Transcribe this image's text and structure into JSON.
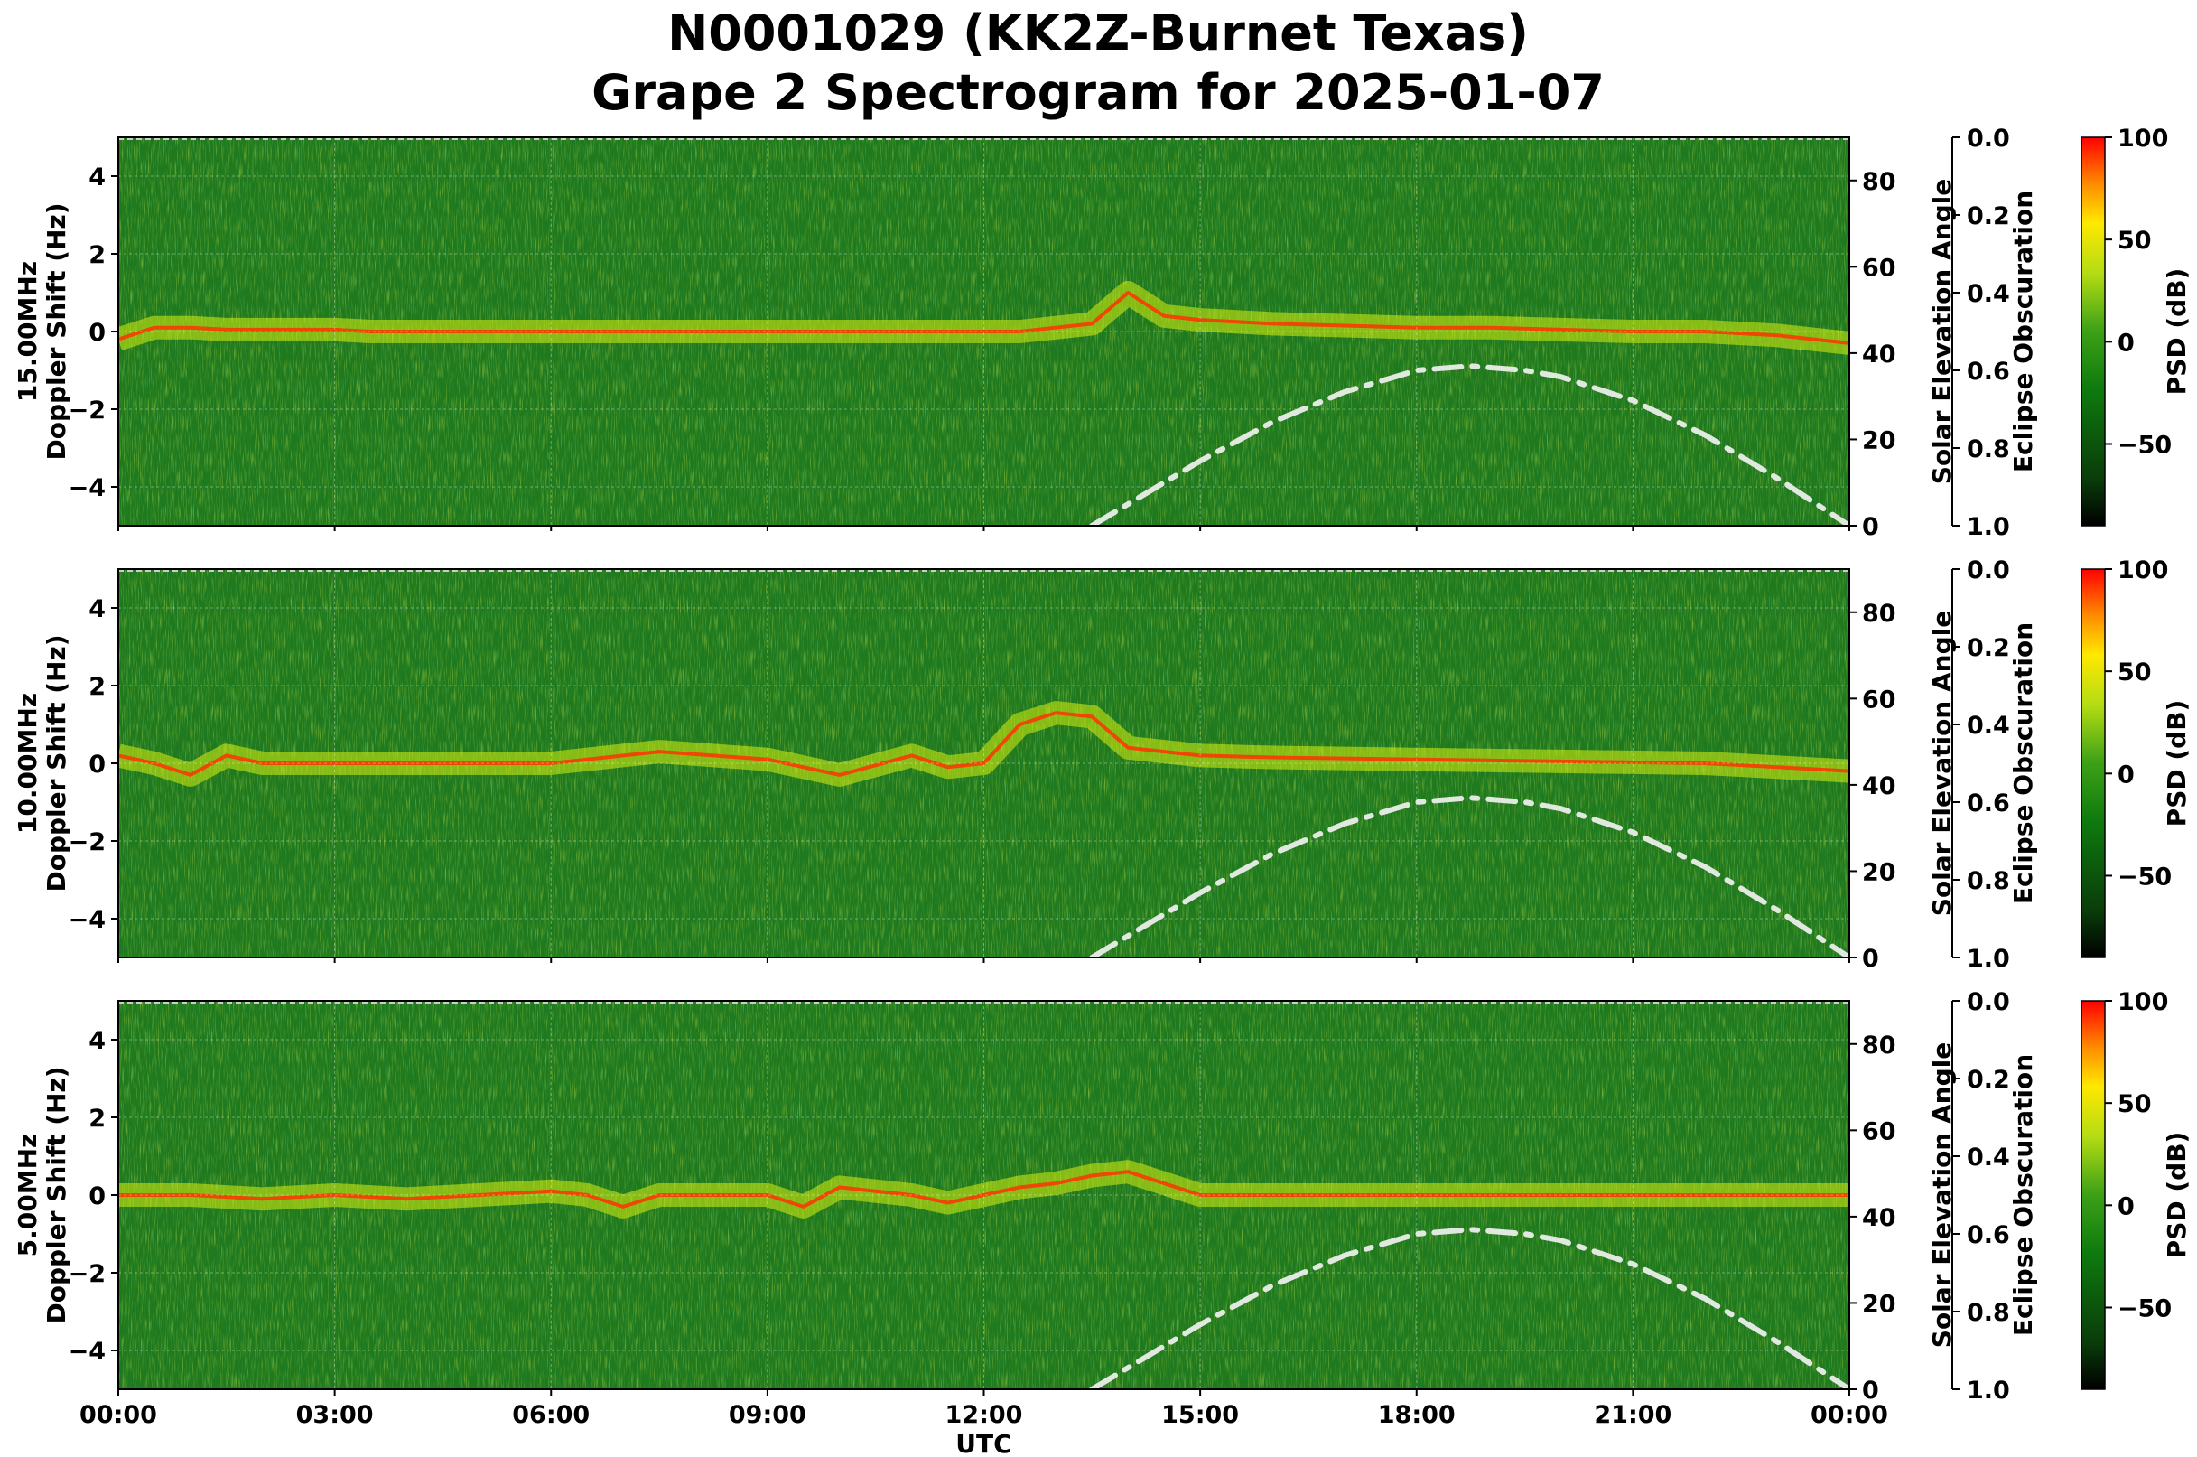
{
  "title": {
    "line1": "N0001029 (KK2Z-Burnet Texas)",
    "line2": "Grape 2 Spectrogram for 2025-01-07"
  },
  "colors": {
    "spectrogram_base": "#1f7a1f",
    "trace_low": "#d8f010",
    "trace_high": "#ff3300",
    "solar_curve": "#e0e8e0",
    "colormap": [
      "#000000",
      "#0a3c0a",
      "#0e7a0e",
      "#3ca016",
      "#b4dc14",
      "#ffe800",
      "#ff8c00",
      "#ff0000"
    ]
  },
  "chart_data": [
    {
      "type": "heatmap",
      "frequency_label": "15.00MHz",
      "ylabel": "Doppler Shift (Hz)",
      "xlabel": "",
      "ylim": [
        -5,
        5
      ],
      "yticks": [
        "4",
        "2",
        "0",
        "−2",
        "−4"
      ],
      "yticks_values": [
        4,
        2,
        0,
        -2,
        -4
      ],
      "xlim_hours": [
        0,
        24
      ],
      "grid": true,
      "secondary_axes": {
        "solar_elevation": {
          "label": "Solar Elevation Angle",
          "ylim": [
            0,
            90
          ],
          "ticks": [
            "0",
            "20",
            "40",
            "60",
            "80"
          ],
          "ticks_values": [
            0,
            20,
            40,
            60,
            80
          ]
        },
        "eclipse_obscuration": {
          "label": "Eclipse Obscuration",
          "ylim": [
            1.0,
            0.0
          ],
          "ticks": [
            "0.0",
            "0.2",
            "0.4",
            "0.6",
            "0.8",
            "1.0"
          ],
          "ticks_values": [
            0.0,
            0.2,
            0.4,
            0.6,
            0.8,
            1.0
          ]
        }
      },
      "colorbar": {
        "label": "PSD (dB)",
        "range": [
          -90,
          100
        ],
        "ticks": [
          "100",
          "50",
          "0",
          "−50"
        ],
        "ticks_values": [
          100,
          50,
          0,
          -50
        ]
      },
      "carrier_trace": {
        "x_hours": [
          0,
          0.5,
          1,
          1.5,
          2,
          2.5,
          3,
          3.5,
          12.5,
          13.5,
          14,
          14.5,
          15,
          16,
          17,
          18,
          19,
          20,
          21,
          22,
          23,
          24
        ],
        "doppler_hz": [
          -0.2,
          0.1,
          0.1,
          0.05,
          0.05,
          0.05,
          0.05,
          0.0,
          0.0,
          0.2,
          1.0,
          0.4,
          0.3,
          0.2,
          0.15,
          0.1,
          0.1,
          0.05,
          0.0,
          0.0,
          -0.1,
          -0.3
        ]
      }
    },
    {
      "type": "heatmap",
      "frequency_label": "10.00MHz",
      "ylabel": "Doppler Shift (Hz)",
      "xlabel": "",
      "ylim": [
        -5,
        5
      ],
      "yticks": [
        "4",
        "2",
        "0",
        "−2",
        "−4"
      ],
      "yticks_values": [
        4,
        2,
        0,
        -2,
        -4
      ],
      "xlim_hours": [
        0,
        24
      ],
      "grid": true,
      "secondary_axes": {
        "solar_elevation": {
          "label": "Solar Elevation Angle",
          "ylim": [
            0,
            90
          ],
          "ticks": [
            "0",
            "20",
            "40",
            "60",
            "80"
          ],
          "ticks_values": [
            0,
            20,
            40,
            60,
            80
          ]
        },
        "eclipse_obscuration": {
          "label": "Eclipse Obscuration",
          "ylim": [
            1.0,
            0.0
          ],
          "ticks": [
            "0.0",
            "0.2",
            "0.4",
            "0.6",
            "0.8",
            "1.0"
          ],
          "ticks_values": [
            0.0,
            0.2,
            0.4,
            0.6,
            0.8,
            1.0
          ]
        }
      },
      "colorbar": {
        "label": "PSD (dB)",
        "range": [
          -90,
          100
        ],
        "ticks": [
          "100",
          "50",
          "0",
          "−50"
        ],
        "ticks_values": [
          100,
          50,
          0,
          -50
        ]
      },
      "carrier_trace": {
        "x_hours": [
          0,
          0.5,
          1,
          1.5,
          2,
          3,
          4,
          6,
          7.5,
          9,
          10,
          11,
          11.5,
          12,
          12.5,
          13,
          13.5,
          14,
          14.5,
          15,
          16,
          18,
          20,
          22,
          24
        ],
        "doppler_hz": [
          0.2,
          0.0,
          -0.3,
          0.2,
          0.0,
          0.0,
          0.0,
          0.0,
          0.3,
          0.1,
          -0.3,
          0.2,
          -0.1,
          0.0,
          1.0,
          1.3,
          1.2,
          0.4,
          0.3,
          0.2,
          0.15,
          0.1,
          0.05,
          0.0,
          -0.2
        ]
      }
    },
    {
      "type": "heatmap",
      "frequency_label": "5.00MHz",
      "ylabel": "Doppler Shift (Hz)",
      "xlabel": "UTC",
      "ylim": [
        -5,
        5
      ],
      "yticks": [
        "4",
        "2",
        "0",
        "−2",
        "−4"
      ],
      "yticks_values": [
        4,
        2,
        0,
        -2,
        -4
      ],
      "xlim_hours": [
        0,
        24
      ],
      "xticks": [
        "00:00",
        "03:00",
        "06:00",
        "09:00",
        "12:00",
        "15:00",
        "18:00",
        "21:00",
        "00:00"
      ],
      "xticks_hours": [
        0,
        3,
        6,
        9,
        12,
        15,
        18,
        21,
        24
      ],
      "grid": true,
      "secondary_axes": {
        "solar_elevation": {
          "label": "Solar Elevation Angle",
          "ylim": [
            0,
            90
          ],
          "ticks": [
            "0",
            "20",
            "40",
            "60",
            "80"
          ],
          "ticks_values": [
            0,
            20,
            40,
            60,
            80
          ]
        },
        "eclipse_obscuration": {
          "label": "Eclipse Obscuration",
          "ylim": [
            1.0,
            0.0
          ],
          "ticks": [
            "0.0",
            "0.2",
            "0.4",
            "0.6",
            "0.8",
            "1.0"
          ],
          "ticks_values": [
            0.0,
            0.2,
            0.4,
            0.6,
            0.8,
            1.0
          ]
        }
      },
      "colorbar": {
        "label": "PSD (dB)",
        "range": [
          -90,
          100
        ],
        "ticks": [
          "100",
          "50",
          "0",
          "−50"
        ],
        "ticks_values": [
          100,
          50,
          0,
          -50
        ]
      },
      "carrier_trace": {
        "x_hours": [
          0,
          1,
          2,
          3,
          4,
          5,
          6,
          6.5,
          7,
          7.5,
          8,
          9,
          9.5,
          10,
          10.5,
          11,
          11.5,
          12,
          12.5,
          13,
          13.5,
          14,
          15,
          16,
          24
        ],
        "doppler_hz": [
          0.0,
          0.0,
          -0.1,
          0.0,
          -0.1,
          0.0,
          0.1,
          0.0,
          -0.3,
          0.0,
          0.0,
          0.0,
          -0.3,
          0.2,
          0.1,
          0.0,
          -0.2,
          0.0,
          0.2,
          0.3,
          0.5,
          0.6,
          0.0,
          0.0,
          0.0
        ]
      }
    }
  ],
  "solar_elevation_curve": {
    "x_hours": [
      13.5,
      14,
      15,
      16,
      17,
      18,
      18.75,
      19.5,
      20,
      21,
      22,
      23,
      24
    ],
    "elevation_deg": [
      0,
      5,
      15,
      24,
      31,
      36,
      37,
      36,
      34.5,
      29,
      21,
      11,
      0
    ]
  }
}
